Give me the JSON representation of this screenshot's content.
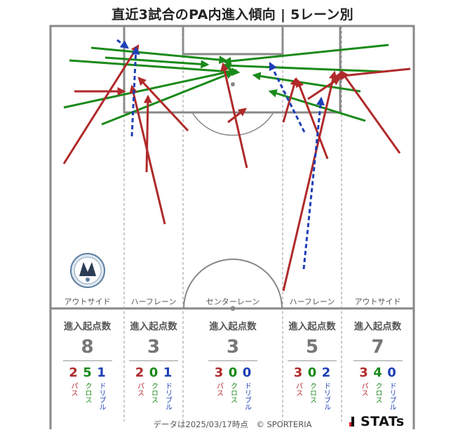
{
  "title": "直近3試合のPA内進入傾向 | 5レーン別",
  "colors": {
    "pass": "#b02a2a",
    "cross": "#1a8a1a",
    "dribble": "#1e3fb5",
    "line": "#888888"
  },
  "logo": {
    "name": "fc-osaka-logo",
    "text": "FC OSAKA"
  },
  "lanes": [
    {
      "label": "アウトサイド",
      "header": "進入起点数",
      "total": "8",
      "breakdown": [
        {
          "type": "pass",
          "value": "2",
          "label": "パス"
        },
        {
          "type": "cross",
          "value": "5",
          "label": "クロス"
        },
        {
          "type": "drib",
          "value": "1",
          "label": "ドリブル"
        }
      ]
    },
    {
      "label": "ハーフレーン",
      "header": "進入起点数",
      "total": "3",
      "breakdown": [
        {
          "type": "pass",
          "value": "2",
          "label": "パス"
        },
        {
          "type": "cross",
          "value": "0",
          "label": "クロス"
        },
        {
          "type": "drib",
          "value": "1",
          "label": "ドリブル"
        }
      ]
    },
    {
      "label": "センターレーン",
      "header": "進入起点数",
      "total": "3",
      "breakdown": [
        {
          "type": "pass",
          "value": "3",
          "label": "パス"
        },
        {
          "type": "cross",
          "value": "0",
          "label": "クロス"
        },
        {
          "type": "drib",
          "value": "0",
          "label": "ドリブル"
        }
      ]
    },
    {
      "label": "ハーフレーン",
      "header": "進入起点数",
      "total": "5",
      "breakdown": [
        {
          "type": "pass",
          "value": "3",
          "label": "パス"
        },
        {
          "type": "cross",
          "value": "0",
          "label": "クロス"
        },
        {
          "type": "drib",
          "value": "2",
          "label": "ドリブル"
        }
      ]
    },
    {
      "label": "アウトサイド",
      "header": "進入起点数",
      "total": "7",
      "breakdown": [
        {
          "type": "pass",
          "value": "3",
          "label": "パス"
        },
        {
          "type": "cross",
          "value": "4",
          "label": "クロス"
        },
        {
          "type": "drib",
          "value": "0",
          "label": "ドリブル"
        }
      ]
    }
  ],
  "footer": "データは2025/03/17時点　© SPORTERIA",
  "brand": "STATs"
}
